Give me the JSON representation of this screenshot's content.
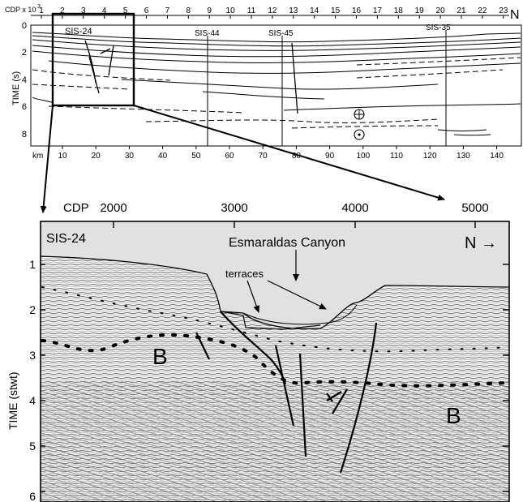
{
  "overview": {
    "cdp_label": "CDP x 10",
    "cdp_exponent": "3",
    "cdp_ticks": [
      "1",
      "2",
      "3",
      "4",
      "5",
      "6",
      "7",
      "8",
      "9",
      "10",
      "11",
      "12",
      "13",
      "14",
      "15",
      "16",
      "17",
      "18",
      "19",
      "20",
      "21",
      "22",
      "23"
    ],
    "north_label": "N",
    "y_axis_label": "TIME (s)",
    "time_ticks": [
      "0",
      "2",
      "4",
      "6",
      "8"
    ],
    "km_label": "km",
    "km_ticks": [
      "10",
      "20",
      "30",
      "40",
      "50",
      "60",
      "70",
      "80",
      "90",
      "100",
      "110",
      "120",
      "130",
      "140"
    ],
    "line_labels": {
      "sis24": "SIS-24",
      "sis44": "SIS-44",
      "sis45": "SIS-45",
      "sis35": "SIS-35"
    }
  },
  "detail": {
    "cdp_label": "CDP",
    "cdp_ticks": [
      "2000",
      "3000",
      "4000",
      "5000"
    ],
    "section_label": "SIS-24",
    "canyon_label": "Esmaraldas Canyon",
    "terraces_label": "terraces",
    "north_label": "N →",
    "y_axis_label": "TIME (stwt)",
    "time_ticks": [
      "1",
      "2",
      "3",
      "4",
      "5",
      "6"
    ],
    "unit_labels": [
      "B",
      "B"
    ]
  },
  "colors": {
    "water": "#e1e1e1",
    "ink": "#000000",
    "seismic_dark": "#555555",
    "seismic_light": "#9a9a9a"
  }
}
